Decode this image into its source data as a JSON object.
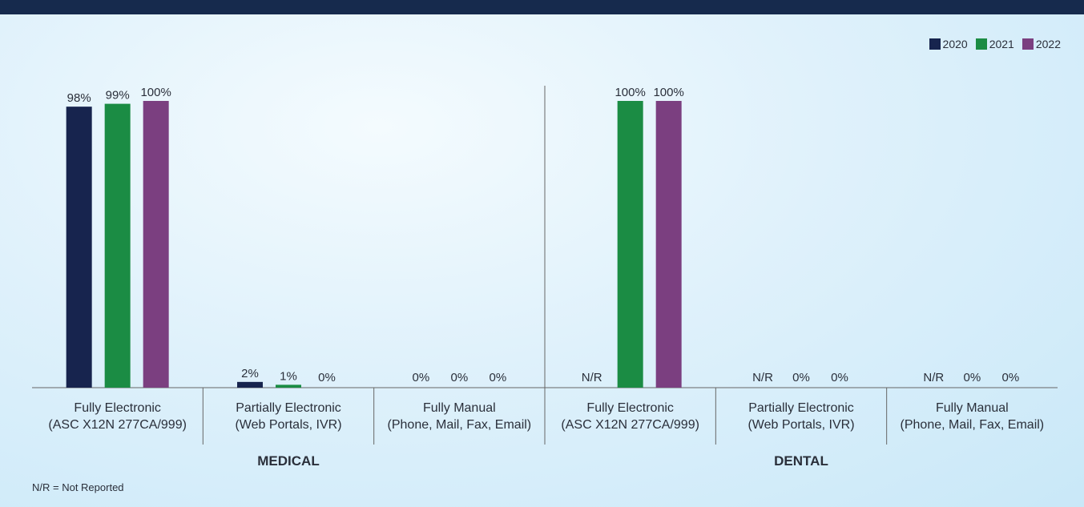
{
  "footnote": "N/R = Not Reported",
  "colors": {
    "2020": "#17244e",
    "2021": "#1b8c44",
    "2022": "#7b3f80",
    "axis": "#666666",
    "text": "#2a2f3a"
  },
  "chart_data": {
    "type": "bar",
    "legend_position": "top-right",
    "legend": [
      "2020",
      "2021",
      "2022"
    ],
    "ylim": [
      0,
      100
    ],
    "groups": [
      {
        "label": "MEDICAL",
        "categories": [
          {
            "line1": "Fully Electronic",
            "line2": "(ASC X12N 277CA/999)",
            "values": [
              98,
              99,
              100
            ],
            "labels": [
              "98%",
              "99%",
              "100%"
            ]
          },
          {
            "line1": "Partially Electronic",
            "line2": "(Web Portals, IVR)",
            "values": [
              2,
              1,
              0
            ],
            "labels": [
              "2%",
              "1%",
              "0%"
            ]
          },
          {
            "line1": "Fully Manual",
            "line2": "(Phone, Mail, Fax, Email)",
            "values": [
              0,
              0,
              0
            ],
            "labels": [
              "0%",
              "0%",
              "0%"
            ]
          }
        ]
      },
      {
        "label": "DENTAL",
        "categories": [
          {
            "line1": "Fully Electronic",
            "line2": "(ASC X12N 277CA/999)",
            "values": [
              null,
              100,
              100
            ],
            "labels": [
              "N/R",
              "100%",
              "100%"
            ]
          },
          {
            "line1": "Partially Electronic",
            "line2": "(Web Portals, IVR)",
            "values": [
              null,
              0,
              0
            ],
            "labels": [
              "N/R",
              "0%",
              "0%"
            ]
          },
          {
            "line1": "Fully Manual",
            "line2": "(Phone, Mail, Fax, Email)",
            "values": [
              null,
              0,
              0
            ],
            "labels": [
              "N/R",
              "0%",
              "0%"
            ]
          }
        ]
      }
    ]
  }
}
